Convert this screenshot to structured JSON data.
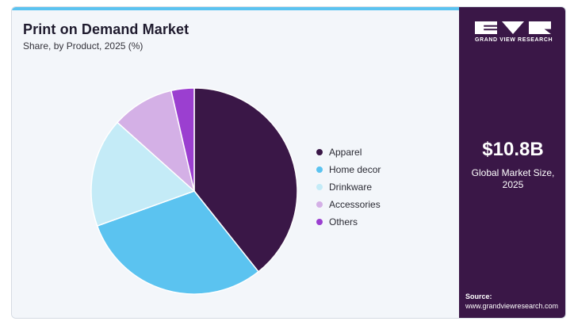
{
  "header": {
    "title": "Print on Demand Market",
    "subtitle": "Share, by Product, 2025 (%)"
  },
  "sidebar": {
    "logo_text": "GRAND VIEW RESEARCH",
    "market_size_value": "$10.8B",
    "market_size_label_line1": "Global Market Size,",
    "market_size_label_line2": "2025",
    "source_label": "Source:",
    "source_url": "www.grandviewresearch.com"
  },
  "colors": {
    "top_accent": "#5bc3f0",
    "side_panel": "#3a1747"
  },
  "chart_data": {
    "type": "pie",
    "start_angle_deg": 0,
    "direction": "clockwise",
    "categories": [
      "Apparel",
      "Home decor",
      "Drinkware",
      "Accessories",
      "Others"
    ],
    "values": [
      39.3,
      30.2,
      17.1,
      9.8,
      3.6
    ],
    "colors": [
      "#3a1747",
      "#5bc3f0",
      "#c4ebf7",
      "#d4b0e6",
      "#9b3fd0"
    ],
    "legend_position": "right"
  }
}
